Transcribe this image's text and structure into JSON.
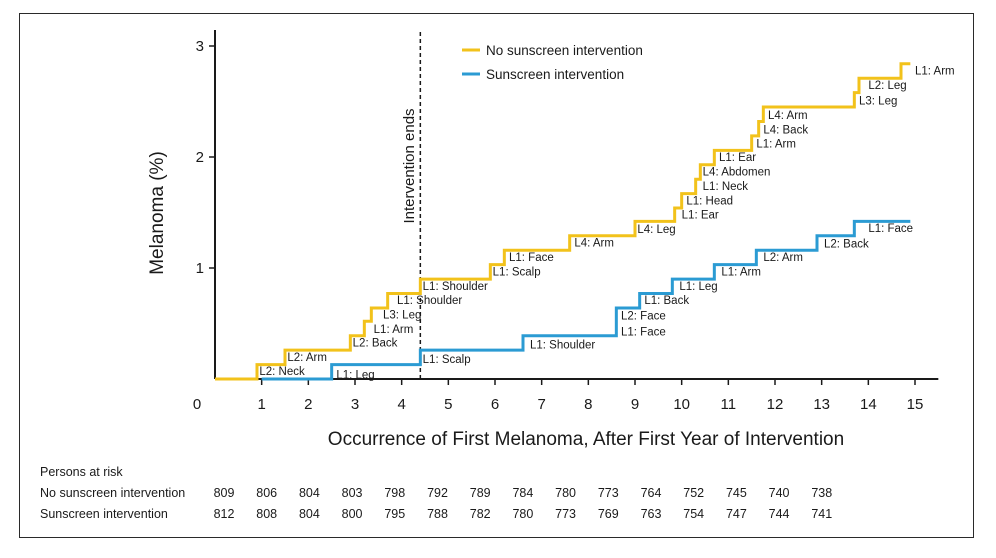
{
  "chart_data": {
    "type": "line",
    "title": "",
    "xlabel": "Occurrence of First Melanoma, After First Year of Intervention",
    "ylabel": "Melanoma (%)",
    "xlim": [
      0,
      15.5
    ],
    "ylim": [
      0,
      3
    ],
    "x_ticks": [
      "0",
      "1",
      "2",
      "3",
      "4",
      "5",
      "6",
      "7",
      "8",
      "9",
      "10",
      "11",
      "12",
      "13",
      "14",
      "15"
    ],
    "y_ticks": [
      "1",
      "2",
      "3"
    ],
    "grid": false,
    "legend_position": "top-right",
    "annotation": {
      "x": 4.4,
      "label": "Intervention ends"
    },
    "series": [
      {
        "name": "No sunscreen intervention",
        "color": "#F2C21B",
        "steps": [
          [
            0.0,
            0.0
          ],
          [
            0.9,
            0.13
          ],
          [
            1.5,
            0.26
          ],
          [
            2.9,
            0.39
          ],
          [
            3.2,
            0.52
          ],
          [
            3.35,
            0.64
          ],
          [
            3.7,
            0.77
          ],
          [
            4.4,
            0.9
          ],
          [
            5.9,
            1.03
          ],
          [
            6.2,
            1.16
          ],
          [
            7.6,
            1.29
          ],
          [
            9.0,
            1.42
          ],
          [
            9.85,
            1.54
          ],
          [
            10.0,
            1.67
          ],
          [
            10.3,
            1.8
          ],
          [
            10.4,
            1.93
          ],
          [
            10.7,
            2.06
          ],
          [
            11.5,
            2.19
          ],
          [
            11.65,
            2.32
          ],
          [
            11.75,
            2.45
          ],
          [
            13.7,
            2.58
          ],
          [
            13.8,
            2.71
          ],
          [
            14.7,
            2.84
          ],
          [
            14.9,
            2.84
          ]
        ],
        "labels": [
          {
            "x": 0.95,
            "y": 0.07,
            "text": "L2: Neck"
          },
          {
            "x": 1.55,
            "y": 0.2,
            "text": "L2: Arm"
          },
          {
            "x": 2.95,
            "y": 0.33,
            "text": "L2: Back"
          },
          {
            "x": 3.4,
            "y": 0.45,
            "text": "L1: Arm"
          },
          {
            "x": 3.6,
            "y": 0.58,
            "text": "L3: Leg"
          },
          {
            "x": 3.9,
            "y": 0.71,
            "text": "L1: Shoulder"
          },
          {
            "x": 4.45,
            "y": 0.84,
            "text": "L1: Shoulder"
          },
          {
            "x": 5.95,
            "y": 0.97,
            "text": "L1: Scalp"
          },
          {
            "x": 6.3,
            "y": 1.1,
            "text": "L1: Face"
          },
          {
            "x": 7.7,
            "y": 1.23,
            "text": "L4: Arm"
          },
          {
            "x": 9.05,
            "y": 1.35,
            "text": "L4: Leg"
          },
          {
            "x": 10.0,
            "y": 1.48,
            "text": "L1: Ear"
          },
          {
            "x": 10.1,
            "y": 1.61,
            "text": "L1: Head"
          },
          {
            "x": 10.45,
            "y": 1.74,
            "text": "L1: Neck"
          },
          {
            "x": 10.45,
            "y": 1.87,
            "text": "L4: Abdomen"
          },
          {
            "x": 10.8,
            "y": 2.0,
            "text": "L1: Ear"
          },
          {
            "x": 11.6,
            "y": 2.12,
            "text": "L1: Arm"
          },
          {
            "x": 11.75,
            "y": 2.25,
            "text": "L4: Back"
          },
          {
            "x": 11.85,
            "y": 2.38,
            "text": "L4: Arm"
          },
          {
            "x": 13.8,
            "y": 2.51,
            "text": "L3: Leg"
          },
          {
            "x": 14.0,
            "y": 2.65,
            "text": "L2: Leg"
          },
          {
            "x": 15.0,
            "y": 2.78,
            "text": "L1: Arm"
          }
        ]
      },
      {
        "name": "Sunscreen intervention",
        "color": "#2B9BD3",
        "steps": [
          [
            1.0,
            0.0
          ],
          [
            2.5,
            0.13
          ],
          [
            4.4,
            0.26
          ],
          [
            6.6,
            0.39
          ],
          [
            8.6,
            0.64
          ],
          [
            9.1,
            0.77
          ],
          [
            9.8,
            0.9
          ],
          [
            10.7,
            1.03
          ],
          [
            11.6,
            1.16
          ],
          [
            12.9,
            1.29
          ],
          [
            13.7,
            1.42
          ],
          [
            14.9,
            1.42
          ]
        ],
        "labels": [
          {
            "x": 2.6,
            "y": 0.04,
            "text": "L1: Leg"
          },
          {
            "x": 4.45,
            "y": 0.18,
            "text": "L1: Scalp"
          },
          {
            "x": 6.75,
            "y": 0.31,
            "text": "L1: Shoulder"
          },
          {
            "x": 8.7,
            "y": 0.43,
            "text": "L1: Face"
          },
          {
            "x": 8.7,
            "y": 0.57,
            "text": "L2: Face"
          },
          {
            "x": 9.2,
            "y": 0.71,
            "text": "L1: Back"
          },
          {
            "x": 9.95,
            "y": 0.84,
            "text": "L1: Leg"
          },
          {
            "x": 10.85,
            "y": 0.97,
            "text": "L1: Arm"
          },
          {
            "x": 11.75,
            "y": 1.1,
            "text": "L2: Arm"
          },
          {
            "x": 13.05,
            "y": 1.22,
            "text": "L2: Back"
          },
          {
            "x": 14.0,
            "y": 1.36,
            "text": "L1: Face"
          }
        ]
      }
    ]
  },
  "risk_table": {
    "heading": "Persons at risk",
    "rows": [
      {
        "label": "No sunscreen intervention",
        "values": [
          "809",
          "806",
          "804",
          "803",
          "798",
          "792",
          "789",
          "784",
          "780",
          "773",
          "764",
          "752",
          "745",
          "740",
          "738"
        ]
      },
      {
        "label": "Sunscreen intervention",
        "values": [
          "812",
          "808",
          "804",
          "800",
          "795",
          "788",
          "782",
          "780",
          "773",
          "769",
          "763",
          "754",
          "747",
          "744",
          "741"
        ]
      }
    ]
  }
}
